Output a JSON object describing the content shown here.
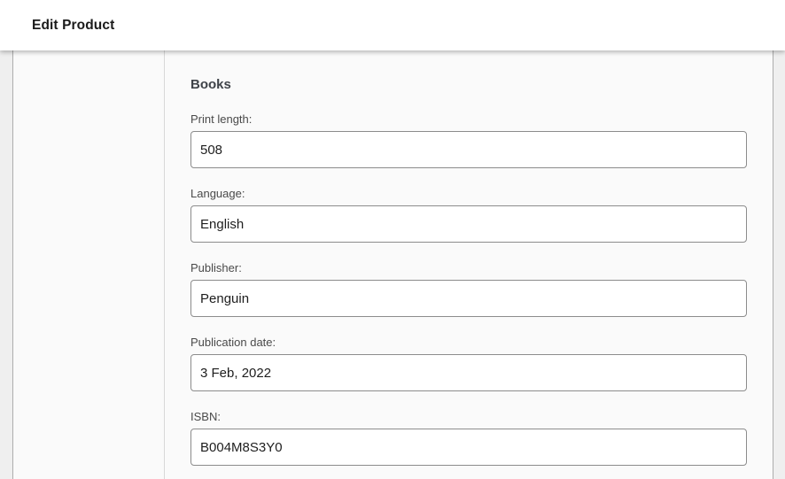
{
  "header": {
    "title": "Edit Product"
  },
  "section": {
    "title": "Books"
  },
  "form": {
    "fields": [
      {
        "label": "Print length:",
        "value": "508"
      },
      {
        "label": "Language:",
        "value": "English"
      },
      {
        "label": "Publisher:",
        "value": "Penguin"
      },
      {
        "label": "Publication date:",
        "value": "3 Feb, 2022"
      },
      {
        "label": "ISBN:",
        "value": "B004M8S3Y0"
      }
    ]
  },
  "colors": {
    "page_margin_bg": "#efefef",
    "panel_bg": "#fafafa",
    "panel_border": "#adadad",
    "divider": "#d8d8d8",
    "input_border": "#8c8c8c",
    "label_text": "#4a4a4a",
    "heading_text": "#3f4349",
    "value_text": "#1e1e1e"
  }
}
